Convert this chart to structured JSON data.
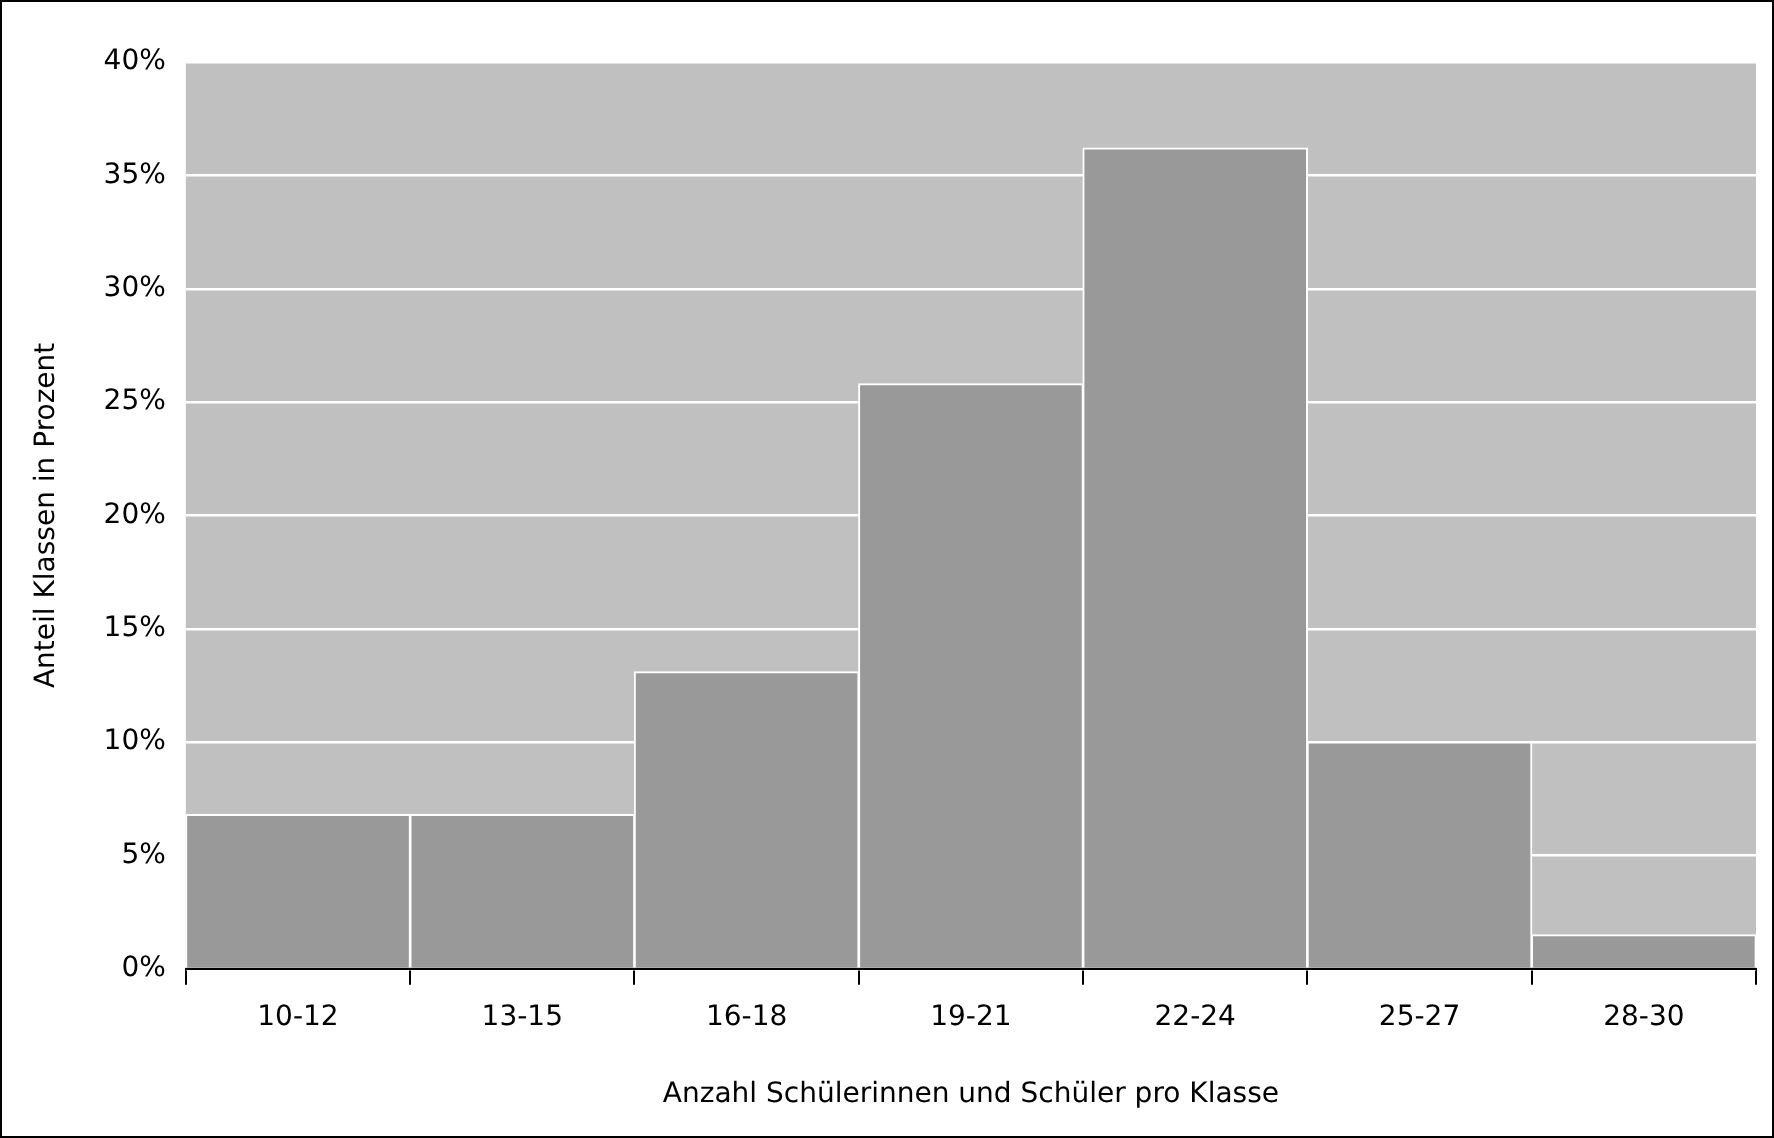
{
  "chart_data": {
    "type": "bar",
    "xlabel": "Anzahl Schülerinnen und Schüler pro Klasse",
    "ylabel": "Anteil Klassen in Prozent",
    "categories": [
      "10-12",
      "13-15",
      "16-18",
      "19-21",
      "22-24",
      "25-27",
      "28-30"
    ],
    "values": [
      6.8,
      6.8,
      13.1,
      25.8,
      36.2,
      10.0,
      1.5
    ],
    "color": "#999999",
    "ylim": [
      0,
      40
    ],
    "yticks": [
      {
        "value": 0,
        "label": "0%"
      },
      {
        "value": 5,
        "label": "5%"
      },
      {
        "value": 10,
        "label": "10%"
      },
      {
        "value": 15,
        "label": "15%"
      },
      {
        "value": 20,
        "label": "20%"
      },
      {
        "value": 25,
        "label": "25%"
      },
      {
        "value": 30,
        "label": "30%"
      },
      {
        "value": 35,
        "label": "35%"
      },
      {
        "value": 40,
        "label": "40%"
      }
    ],
    "grid": "y",
    "legend": false
  }
}
